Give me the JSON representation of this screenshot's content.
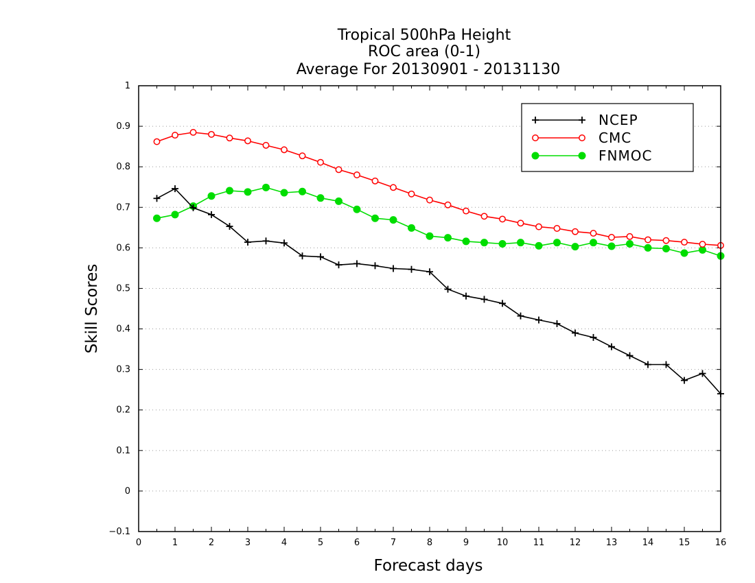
{
  "chart_data": {
    "type": "line",
    "title_lines": [
      "Tropical 500hPa Height",
      "ROC area (0-1)",
      "Average For 20130901 - 20131130"
    ],
    "xlabel": "Forecast days",
    "ylabel": "Skill Scores",
    "xlim": [
      0,
      16
    ],
    "ylim": [
      -0.1,
      1
    ],
    "x_ticks": [
      "0",
      "1",
      "2",
      "3",
      "4",
      "5",
      "6",
      "7",
      "8",
      "9",
      "10",
      "11",
      "12",
      "13",
      "14",
      "15",
      "16"
    ],
    "y_ticks": [
      "−0.1",
      "0",
      "0.1",
      "0.2",
      "0.3",
      "0.4",
      "0.5",
      "0.6",
      "0.7",
      "0.8",
      "0.9",
      "1"
    ],
    "grid": "horizontal-dotted",
    "legend_position": "top-right",
    "x": [
      0.5,
      1,
      1.5,
      2,
      2.5,
      3,
      3.5,
      4,
      4.5,
      5,
      5.5,
      6,
      6.5,
      7,
      7.5,
      8,
      8.5,
      9,
      9.5,
      10,
      10.5,
      11,
      11.5,
      12,
      12.5,
      13,
      13.5,
      14,
      14.5,
      15,
      15.5,
      16
    ],
    "series": [
      {
        "name": "NCEP",
        "color": "#000000",
        "marker": "plus",
        "values": [
          0.722,
          0.746,
          0.699,
          0.682,
          0.653,
          0.614,
          0.617,
          0.612,
          0.58,
          0.578,
          0.558,
          0.561,
          0.556,
          0.549,
          0.547,
          0.541,
          0.498,
          0.481,
          0.473,
          0.463,
          0.432,
          0.422,
          0.413,
          0.39,
          0.379,
          0.356,
          0.334,
          0.312,
          0.312,
          0.273,
          0.29,
          0.24
        ]
      },
      {
        "name": "CMC",
        "color": "#ff0000",
        "marker": "open-circle",
        "values": [
          0.862,
          0.878,
          0.885,
          0.88,
          0.871,
          0.864,
          0.853,
          0.842,
          0.827,
          0.811,
          0.793,
          0.78,
          0.765,
          0.749,
          0.733,
          0.718,
          0.706,
          0.691,
          0.678,
          0.671,
          0.661,
          0.652,
          0.648,
          0.64,
          0.636,
          0.626,
          0.628,
          0.62,
          0.618,
          0.614,
          0.609,
          0.606
        ]
      },
      {
        "name": "FNMOC",
        "color": "#00dd00",
        "marker": "filled-circle",
        "values": [
          0.673,
          0.682,
          0.703,
          0.728,
          0.741,
          0.738,
          0.749,
          0.736,
          0.739,
          0.723,
          0.715,
          0.695,
          0.673,
          0.669,
          0.649,
          0.629,
          0.625,
          0.616,
          0.613,
          0.61,
          0.613,
          0.605,
          0.613,
          0.603,
          0.613,
          0.604,
          0.61,
          0.6,
          0.598,
          0.587,
          0.595,
          0.58
        ]
      }
    ]
  }
}
